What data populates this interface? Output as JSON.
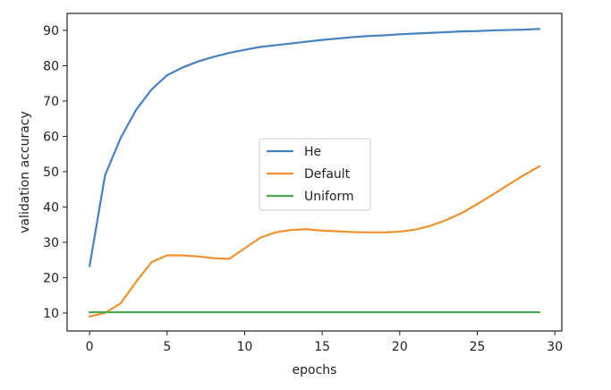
{
  "chart_data": {
    "type": "line",
    "title": "",
    "xlabel": "epochs",
    "ylabel": "validation accuracy",
    "xlim": [
      -1.45,
      30.45
    ],
    "ylim": [
      4.9,
      94.8
    ],
    "xticks": [
      0,
      5,
      10,
      15,
      20,
      25,
      30
    ],
    "yticks": [
      10,
      20,
      30,
      40,
      50,
      60,
      70,
      80,
      90
    ],
    "grid": false,
    "legend_position": "center",
    "x": [
      0,
      1,
      2,
      3,
      4,
      5,
      6,
      7,
      8,
      9,
      10,
      11,
      12,
      13,
      14,
      15,
      16,
      17,
      18,
      19,
      20,
      21,
      22,
      23,
      24,
      25,
      26,
      27,
      28,
      29
    ],
    "series": [
      {
        "name": "He",
        "color": "#4682c0",
        "values": [
          23.3,
          49.0,
          59.5,
          67.5,
          73.3,
          77.3,
          79.5,
          81.2,
          82.5,
          83.6,
          84.5,
          85.3,
          85.8,
          86.3,
          86.8,
          87.3,
          87.7,
          88.1,
          88.4,
          88.6,
          88.9,
          89.1,
          89.3,
          89.5,
          89.7,
          89.8,
          90.0,
          90.1,
          90.2,
          90.4
        ]
      },
      {
        "name": "Default",
        "color": "#f0912e",
        "values": [
          9.0,
          10.0,
          12.7,
          18.8,
          24.4,
          26.3,
          26.3,
          26.0,
          25.5,
          25.3,
          28.3,
          31.3,
          32.8,
          33.5,
          33.7,
          33.3,
          33.1,
          32.9,
          32.8,
          32.8,
          33.0,
          33.6,
          34.7,
          36.3,
          38.3,
          40.8,
          43.5,
          46.3,
          49.0,
          51.5
        ]
      },
      {
        "name": "Uniform",
        "color": "#4fa84f",
        "values": [
          10.2,
          10.2,
          10.2,
          10.2,
          10.2,
          10.2,
          10.2,
          10.2,
          10.2,
          10.2,
          10.2,
          10.2,
          10.2,
          10.2,
          10.2,
          10.2,
          10.2,
          10.2,
          10.2,
          10.2,
          10.2,
          10.2,
          10.2,
          10.2,
          10.2,
          10.2,
          10.2,
          10.2,
          10.2,
          10.2
        ]
      }
    ]
  }
}
